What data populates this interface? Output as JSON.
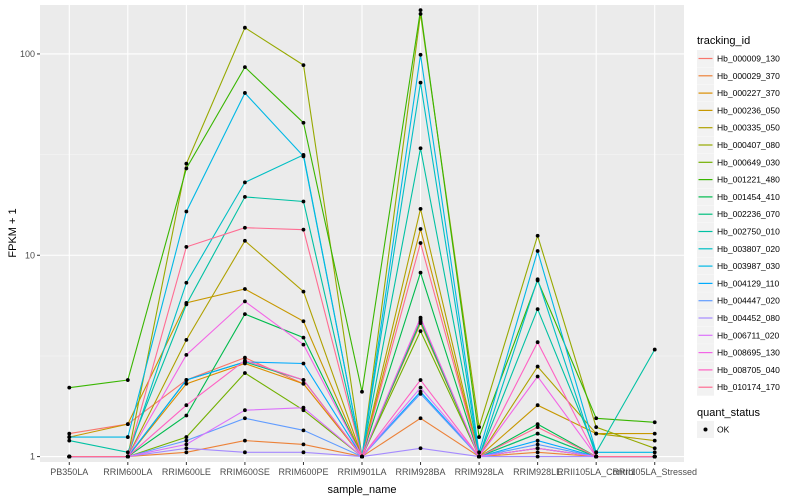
{
  "chart_data": {
    "type": "line",
    "xlabel": "sample_name",
    "ylabel": "FPKM + 1",
    "y_scale": "log10",
    "ylim": [
      0.94,
      175
    ],
    "y_ticks": [
      {
        "value": 1,
        "label": "1"
      },
      {
        "value": 10,
        "label": "10"
      },
      {
        "value": 100,
        "label": "100"
      }
    ],
    "grid": true,
    "background": "#ebebeb",
    "categories": [
      "PB350LA",
      "RRIM600LA",
      "RRIM600LE",
      "RRIM600SE",
      "RRIM600PE",
      "RRIM901LA",
      "RRIM928BA",
      "RRIM928LA",
      "RRIM928LE",
      "RRII105LA_Control",
      "RRII105LA_Stressed"
    ],
    "legend": {
      "position": "right",
      "tracking_title": "tracking_id",
      "status_title": "quant_status",
      "status_label": "OK"
    },
    "series": [
      {
        "name": "Hb_000009_130",
        "color": "#F8766D",
        "values": [
          1.3,
          1.45,
          2.4,
          3.1,
          2.3,
          1.0,
          4.8,
          1.0,
          1.1,
          1.0,
          1.0
        ]
      },
      {
        "name": "Hb_000029_370",
        "color": "#EC8239",
        "values": [
          1.0,
          1.0,
          1.05,
          1.2,
          1.15,
          1.0,
          1.55,
          1.0,
          1.05,
          1.0,
          1.0
        ]
      },
      {
        "name": "Hb_000227_370",
        "color": "#DB8E00",
        "values": [
          1.0,
          1.0,
          2.3,
          2.9,
          2.3,
          1.0,
          4.6,
          1.0,
          1.1,
          1.0,
          1.0
        ]
      },
      {
        "name": "Hb_000236_050",
        "color": "#C79800",
        "values": [
          1.25,
          1.45,
          5.8,
          6.8,
          4.7,
          1.0,
          13.5,
          1.0,
          1.8,
          1.3,
          1.3
        ]
      },
      {
        "name": "Hb_000335_050",
        "color": "#AFA100",
        "values": [
          1.0,
          1.0,
          3.8,
          11.8,
          6.6,
          1.0,
          17.0,
          1.0,
          2.8,
          1.3,
          1.2
        ]
      },
      {
        "name": "Hb_000407_080",
        "color": "#96A900",
        "values": [
          1.0,
          1.0,
          28.5,
          135.0,
          88.0,
          1.0,
          158.0,
          1.4,
          12.5,
          1.4,
          1.1
        ]
      },
      {
        "name": "Hb_000649_030",
        "color": "#72B000",
        "values": [
          1.0,
          1.0,
          1.25,
          2.6,
          1.7,
          1.0,
          4.2,
          1.0,
          1.3,
          1.0,
          1.0
        ]
      },
      {
        "name": "Hb_001221_480",
        "color": "#39B600",
        "values": [
          2.2,
          2.4,
          27.0,
          86.0,
          45.5,
          2.1,
          165.0,
          1.25,
          7.5,
          1.55,
          1.48
        ]
      },
      {
        "name": "Hb_001454_410",
        "color": "#00BB4E",
        "values": [
          1.0,
          1.0,
          1.6,
          5.1,
          3.9,
          1.0,
          8.2,
          1.0,
          1.45,
          1.0,
          1.0
        ]
      },
      {
        "name": "Hb_002236_070",
        "color": "#00BF7D",
        "values": [
          1.0,
          1.0,
          2.4,
          2.95,
          2.4,
          1.0,
          4.7,
          1.0,
          1.3,
          1.0,
          1.0
        ]
      },
      {
        "name": "Hb_002750_010",
        "color": "#00C1A3",
        "values": [
          1.2,
          1.05,
          5.7,
          19.5,
          18.5,
          1.0,
          34.0,
          1.0,
          5.4,
          1.05,
          3.4
        ]
      },
      {
        "name": "Hb_003807_020",
        "color": "#00BFC4",
        "values": [
          1.0,
          1.0,
          7.3,
          23.0,
          31.5,
          1.0,
          72.0,
          1.0,
          7.6,
          1.0,
          1.0
        ]
      },
      {
        "name": "Hb_003987_030",
        "color": "#00B8E5",
        "values": [
          1.25,
          1.25,
          16.5,
          64.0,
          31.0,
          1.0,
          99.0,
          1.05,
          10.5,
          1.05,
          1.05
        ]
      },
      {
        "name": "Hb_004129_110",
        "color": "#00ABFD",
        "values": [
          1.0,
          1.0,
          2.4,
          2.95,
          2.9,
          1.0,
          2.1,
          1.0,
          1.2,
          1.0,
          1.0
        ]
      },
      {
        "name": "Hb_004447_020",
        "color": "#619CFF",
        "values": [
          1.0,
          1.0,
          1.2,
          1.55,
          1.35,
          1.0,
          2.05,
          1.0,
          1.15,
          1.0,
          1.0
        ]
      },
      {
        "name": "Hb_004452_080",
        "color": "#A58AFF",
        "values": [
          1.0,
          1.0,
          1.1,
          1.05,
          1.05,
          1.0,
          1.1,
          1.0,
          1.0,
          1.0,
          1.0
        ]
      },
      {
        "name": "Hb_006711_020",
        "color": "#DB72FB",
        "values": [
          1.0,
          1.0,
          1.15,
          1.7,
          1.75,
          1.0,
          2.2,
          1.0,
          1.1,
          1.0,
          1.0
        ]
      },
      {
        "name": "Hb_008695_130",
        "color": "#F365E6",
        "values": [
          1.0,
          1.0,
          3.2,
          5.9,
          3.6,
          1.0,
          4.9,
          1.0,
          2.5,
          1.0,
          1.0
        ]
      },
      {
        "name": "Hb_008705_040",
        "color": "#FF61C3",
        "values": [
          1.0,
          1.0,
          1.8,
          3.0,
          2.4,
          1.0,
          2.4,
          1.0,
          3.7,
          1.0,
          1.0
        ]
      },
      {
        "name": "Hb_010174_170",
        "color": "#FF6C92",
        "values": [
          1.0,
          1.0,
          11.0,
          13.7,
          13.4,
          1.0,
          11.5,
          1.0,
          1.4,
          1.0,
          1.0
        ]
      }
    ]
  }
}
